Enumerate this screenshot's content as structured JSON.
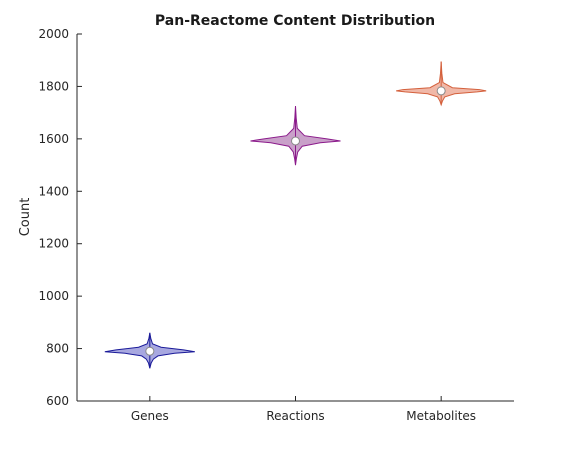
{
  "chart_data": {
    "type": "violin",
    "title": "Pan-Reactome Content Distribution",
    "xlabel": "",
    "ylabel": "Count",
    "ylim": [
      600,
      2000
    ],
    "yticks": [
      600,
      800,
      1000,
      1200,
      1400,
      1600,
      1800,
      2000
    ],
    "categories": [
      "Genes",
      "Reactions",
      "Metabolites"
    ],
    "grid": false,
    "series": [
      {
        "category": "Genes",
        "median": 790,
        "mean": 790,
        "range": [
          725,
          860
        ],
        "iqr": [
          780,
          800
        ],
        "color_fill": "#a8a8e0",
        "color_edge": "#1a1a99",
        "shape": [
          [
            725,
            0.0
          ],
          [
            745,
            0.03
          ],
          [
            760,
            0.08
          ],
          [
            772,
            0.18
          ],
          [
            782,
            0.55
          ],
          [
            788,
            1.0
          ],
          [
            795,
            0.75
          ],
          [
            805,
            0.25
          ],
          [
            818,
            0.06
          ],
          [
            840,
            0.02
          ],
          [
            860,
            0.0
          ]
        ]
      },
      {
        "category": "Reactions",
        "median": 1592,
        "mean": 1592,
        "range": [
          1500,
          1725
        ],
        "iqr": [
          1580,
          1605
        ],
        "color_fill": "#c9a0c9",
        "color_edge": "#8b1a8b",
        "shape": [
          [
            1500,
            0.0
          ],
          [
            1525,
            0.02
          ],
          [
            1550,
            0.05
          ],
          [
            1572,
            0.15
          ],
          [
            1585,
            0.55
          ],
          [
            1592,
            1.0
          ],
          [
            1600,
            0.7
          ],
          [
            1612,
            0.2
          ],
          [
            1640,
            0.04
          ],
          [
            1680,
            0.015
          ],
          [
            1725,
            0.0
          ]
        ]
      },
      {
        "category": "Metabolites",
        "median": 1783,
        "mean": 1783,
        "range": [
          1730,
          1895
        ],
        "iqr": [
          1775,
          1790
        ],
        "color_fill": "#f0b8a8",
        "color_edge": "#d4603c",
        "shape": [
          [
            1730,
            0.0
          ],
          [
            1745,
            0.03
          ],
          [
            1760,
            0.08
          ],
          [
            1772,
            0.3
          ],
          [
            1779,
            0.8
          ],
          [
            1783,
            1.0
          ],
          [
            1788,
            0.85
          ],
          [
            1795,
            0.25
          ],
          [
            1815,
            0.04
          ],
          [
            1850,
            0.015
          ],
          [
            1895,
            0.0
          ]
        ]
      }
    ]
  }
}
